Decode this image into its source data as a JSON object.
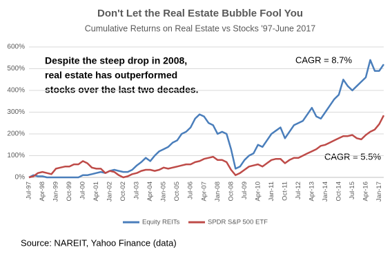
{
  "chart_data": {
    "type": "line",
    "title": "Don't Let the Real Estate Bubble Fool You",
    "subtitle": "Cumulative Returns on Real Estate vs Stocks '97-June 2017",
    "annotation": [
      "Despite the steep drop in 2008,",
      "real estate has outperformed",
      "stocks over the last two decades."
    ],
    "series_labels": [
      "CAGR = 8.7%",
      "CAGR = 5.5%"
    ],
    "source": "Source: NAREIT, Yahoo Finance (data)",
    "categories": [
      "Jul-97",
      null,
      null,
      "Apr-98",
      null,
      null,
      "Jan-99",
      null,
      null,
      "Oct-99",
      null,
      null,
      "Jul-00",
      null,
      null,
      "Apr-01",
      null,
      null,
      "Jan-02",
      null,
      null,
      "Oct-02",
      null,
      null,
      "Jul-03",
      null,
      null,
      "Apr-04",
      null,
      null,
      "Jan-05",
      null,
      null,
      "Oct-05",
      null,
      null,
      "Jul-06",
      null,
      null,
      "Apr-07",
      null,
      null,
      "Jan-08",
      null,
      null,
      "Oct-08",
      null,
      null,
      "Jul-09",
      null,
      null,
      "Apr-10",
      null,
      null,
      "Jan-11",
      null,
      null,
      "Oct-11",
      null,
      null,
      "Jul-12",
      null,
      null,
      "Apr-13",
      null,
      null,
      "Jan-14",
      null,
      null,
      "Oct-14",
      null,
      null,
      "Jul-15",
      null,
      null,
      "Apr-16",
      null,
      null,
      "Jan-17",
      null
    ],
    "series": [
      {
        "name": "Equity REITs",
        "color": "#4a7ebb",
        "values": [
          0,
          10,
          5,
          5,
          0,
          0,
          0,
          0,
          0,
          0,
          0,
          0,
          10,
          10,
          15,
          20,
          25,
          20,
          30,
          35,
          30,
          25,
          25,
          35,
          55,
          70,
          90,
          75,
          100,
          120,
          130,
          140,
          160,
          170,
          200,
          210,
          230,
          270,
          290,
          280,
          250,
          240,
          200,
          210,
          200,
          130,
          40,
          50,
          80,
          100,
          110,
          150,
          140,
          170,
          200,
          215,
          230,
          180,
          210,
          240,
          250,
          260,
          290,
          320,
          280,
          270,
          300,
          330,
          360,
          380,
          450,
          420,
          400,
          420,
          440,
          460,
          540,
          490,
          490,
          520
        ]
      },
      {
        "name": "SPDR S&P 500 ETF",
        "color": "#be4b48",
        "values": [
          0,
          5,
          20,
          25,
          20,
          15,
          40,
          45,
          50,
          50,
          60,
          60,
          75,
          65,
          45,
          40,
          40,
          20,
          30,
          25,
          10,
          0,
          5,
          15,
          20,
          30,
          35,
          35,
          30,
          35,
          45,
          40,
          45,
          50,
          55,
          60,
          60,
          70,
          75,
          85,
          90,
          95,
          80,
          80,
          70,
          35,
          10,
          20,
          35,
          50,
          55,
          60,
          50,
          65,
          80,
          85,
          85,
          65,
          80,
          90,
          90,
          100,
          110,
          120,
          130,
          145,
          150,
          160,
          170,
          180,
          190,
          190,
          195,
          180,
          175,
          195,
          210,
          220,
          245,
          285
        ]
      }
    ],
    "ylim": [
      0,
      600
    ],
    "yticks": [
      {
        "value": 0,
        "label": "0%"
      },
      {
        "value": 100,
        "label": "100%"
      },
      {
        "value": 200,
        "label": "200%"
      },
      {
        "value": 300,
        "label": "300%"
      },
      {
        "value": 400,
        "label": "400%"
      },
      {
        "value": 500,
        "label": "500%"
      },
      {
        "value": 600,
        "label": "600%"
      }
    ],
    "grid": true
  }
}
